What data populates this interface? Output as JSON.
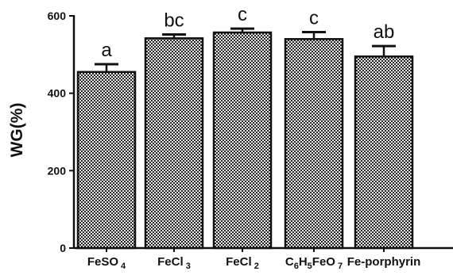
{
  "chart_data": {
    "type": "bar",
    "title": "",
    "xlabel": "",
    "ylabel": "WG(%)",
    "ylim": [
      0,
      600
    ],
    "yticks": [
      "0",
      "200",
      "400",
      "600"
    ],
    "grid": false,
    "legend": "none",
    "categories": [
      {
        "name": "FeSO4",
        "segments": [
          {
            "t": "FeSO",
            "sub": false
          },
          {
            "t": " 4",
            "sub": true
          }
        ]
      },
      {
        "name": "FeCl3",
        "segments": [
          {
            "t": "FeCl",
            "sub": false
          },
          {
            "t": " 3",
            "sub": true
          }
        ]
      },
      {
        "name": "FeCl2",
        "segments": [
          {
            "t": "FeCl",
            "sub": false
          },
          {
            "t": " 2",
            "sub": true
          }
        ]
      },
      {
        "name": "C6H5FeO7",
        "segments": [
          {
            "t": "C",
            "sub": false
          },
          {
            "t": "6",
            "sub": true
          },
          {
            "t": "H",
            "sub": false
          },
          {
            "t": "5",
            "sub": true
          },
          {
            "t": "FeO",
            "sub": false
          },
          {
            "t": " 7",
            "sub": true
          }
        ]
      },
      {
        "name": "Fe-porphyrin",
        "segments": [
          {
            "t": "Fe-porphyrin",
            "sub": false
          }
        ]
      }
    ],
    "values": [
      455,
      542,
      557,
      540,
      495
    ],
    "errors": [
      20,
      10,
      10,
      18,
      27
    ],
    "significance": [
      "a",
      "bc",
      "c",
      "c",
      "ab"
    ],
    "colors": {
      "bar_light": "#e9e9e9",
      "bar_dark": "#262626",
      "axis": "#111111"
    }
  }
}
